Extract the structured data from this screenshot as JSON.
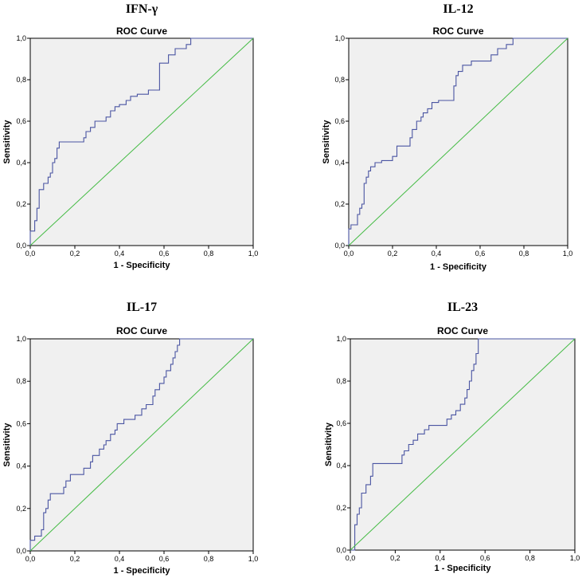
{
  "chart_data": [
    {
      "type": "line",
      "panel_title": "IFN-γ",
      "title": "ROC Curve",
      "xlabel": "1 - Specificity",
      "ylabel": "Sensitivity",
      "xlim": [
        0,
        1
      ],
      "ylim": [
        0,
        1
      ],
      "ticks": [
        "0,0",
        "0,2",
        "0,4",
        "0,6",
        "0,8",
        "1,0"
      ],
      "series": [
        {
          "name": "ROC",
          "x": [
            0,
            0,
            0.02,
            0.02,
            0.03,
            0.03,
            0.04,
            0.04,
            0.06,
            0.06,
            0.08,
            0.08,
            0.09,
            0.09,
            0.1,
            0.1,
            0.11,
            0.11,
            0.12,
            0.12,
            0.13,
            0.13,
            0.24,
            0.24,
            0.25,
            0.25,
            0.27,
            0.27,
            0.29,
            0.29,
            0.34,
            0.34,
            0.36,
            0.36,
            0.38,
            0.38,
            0.4,
            0.4,
            0.43,
            0.43,
            0.45,
            0.45,
            0.48,
            0.48,
            0.53,
            0.53,
            0.58,
            0.58,
            0.62,
            0.62,
            0.65,
            0.65,
            0.7,
            0.7,
            0.72,
            0.72,
            1.0
          ],
          "y": [
            0,
            0.07,
            0.07,
            0.12,
            0.12,
            0.18,
            0.18,
            0.27,
            0.27,
            0.3,
            0.3,
            0.33,
            0.33,
            0.35,
            0.35,
            0.4,
            0.4,
            0.42,
            0.42,
            0.47,
            0.47,
            0.5,
            0.5,
            0.52,
            0.52,
            0.55,
            0.55,
            0.57,
            0.57,
            0.6,
            0.6,
            0.62,
            0.62,
            0.65,
            0.65,
            0.67,
            0.67,
            0.68,
            0.68,
            0.7,
            0.7,
            0.72,
            0.72,
            0.73,
            0.73,
            0.75,
            0.75,
            0.88,
            0.88,
            0.92,
            0.92,
            0.95,
            0.95,
            0.97,
            0.97,
            1.0,
            1.0
          ]
        },
        {
          "name": "Reference",
          "x": [
            0,
            1
          ],
          "y": [
            0,
            1
          ]
        }
      ]
    },
    {
      "type": "line",
      "panel_title": "IL-12",
      "title": "ROC Curve",
      "xlabel": "1 - Specificity",
      "ylabel": "Sensitivity",
      "xlim": [
        0,
        1
      ],
      "ylim": [
        0,
        1
      ],
      "ticks": [
        "0,0",
        "0,2",
        "0,4",
        "0,6",
        "0,8",
        "1,0"
      ],
      "series": [
        {
          "name": "ROC",
          "x": [
            0,
            0,
            0.01,
            0.01,
            0.04,
            0.04,
            0.05,
            0.05,
            0.06,
            0.06,
            0.07,
            0.07,
            0.08,
            0.08,
            0.09,
            0.09,
            0.1,
            0.1,
            0.12,
            0.12,
            0.15,
            0.15,
            0.2,
            0.2,
            0.22,
            0.22,
            0.28,
            0.28,
            0.29,
            0.29,
            0.31,
            0.31,
            0.33,
            0.33,
            0.34,
            0.34,
            0.36,
            0.36,
            0.38,
            0.38,
            0.41,
            0.41,
            0.48,
            0.48,
            0.49,
            0.49,
            0.5,
            0.5,
            0.52,
            0.52,
            0.56,
            0.56,
            0.65,
            0.65,
            0.68,
            0.68,
            0.72,
            0.72,
            0.75,
            0.75,
            1.0
          ],
          "y": [
            0,
            0.08,
            0.08,
            0.1,
            0.1,
            0.15,
            0.15,
            0.18,
            0.18,
            0.2,
            0.2,
            0.3,
            0.3,
            0.33,
            0.33,
            0.36,
            0.36,
            0.38,
            0.38,
            0.4,
            0.4,
            0.41,
            0.41,
            0.43,
            0.43,
            0.48,
            0.48,
            0.52,
            0.52,
            0.56,
            0.56,
            0.6,
            0.6,
            0.62,
            0.62,
            0.64,
            0.64,
            0.66,
            0.66,
            0.69,
            0.69,
            0.7,
            0.7,
            0.77,
            0.77,
            0.82,
            0.82,
            0.84,
            0.84,
            0.87,
            0.87,
            0.89,
            0.89,
            0.92,
            0.92,
            0.95,
            0.95,
            0.97,
            0.97,
            1.0,
            1.0
          ]
        },
        {
          "name": "Reference",
          "x": [
            0,
            1
          ],
          "y": [
            0,
            1
          ]
        }
      ]
    },
    {
      "type": "line",
      "panel_title": "IL-17",
      "title": "ROC Curve",
      "xlabel": "1 - Specificity",
      "ylabel": "Sensitivity",
      "xlim": [
        0,
        1
      ],
      "ylim": [
        0,
        1
      ],
      "ticks": [
        "0,0",
        "0,2",
        "0,4",
        "0,6",
        "0,8",
        "1,0"
      ],
      "series": [
        {
          "name": "ROC",
          "x": [
            0,
            0,
            0.02,
            0.02,
            0.05,
            0.05,
            0.06,
            0.06,
            0.07,
            0.07,
            0.08,
            0.08,
            0.09,
            0.09,
            0.15,
            0.15,
            0.16,
            0.16,
            0.18,
            0.18,
            0.24,
            0.24,
            0.27,
            0.27,
            0.28,
            0.28,
            0.31,
            0.31,
            0.33,
            0.33,
            0.34,
            0.34,
            0.36,
            0.36,
            0.38,
            0.38,
            0.39,
            0.39,
            0.42,
            0.42,
            0.47,
            0.47,
            0.5,
            0.5,
            0.52,
            0.52,
            0.55,
            0.55,
            0.56,
            0.56,
            0.58,
            0.58,
            0.6,
            0.6,
            0.61,
            0.61,
            0.63,
            0.63,
            0.64,
            0.64,
            0.65,
            0.65,
            0.66,
            0.66,
            0.67,
            0.67,
            1.0
          ],
          "y": [
            0,
            0.05,
            0.05,
            0.07,
            0.07,
            0.1,
            0.1,
            0.18,
            0.18,
            0.2,
            0.2,
            0.24,
            0.24,
            0.27,
            0.27,
            0.3,
            0.3,
            0.33,
            0.33,
            0.36,
            0.36,
            0.39,
            0.39,
            0.42,
            0.42,
            0.45,
            0.45,
            0.48,
            0.48,
            0.5,
            0.5,
            0.52,
            0.52,
            0.55,
            0.55,
            0.57,
            0.57,
            0.6,
            0.6,
            0.62,
            0.62,
            0.64,
            0.64,
            0.67,
            0.67,
            0.69,
            0.69,
            0.73,
            0.73,
            0.76,
            0.76,
            0.79,
            0.79,
            0.82,
            0.82,
            0.85,
            0.85,
            0.88,
            0.88,
            0.91,
            0.91,
            0.94,
            0.94,
            0.97,
            0.97,
            1.0,
            1.0
          ]
        },
        {
          "name": "Reference",
          "x": [
            0,
            1
          ],
          "y": [
            0,
            1
          ]
        }
      ]
    },
    {
      "type": "line",
      "panel_title": "IL-23",
      "title": "ROC Curve",
      "xlabel": "1 - Specificity",
      "ylabel": "Sensitivity",
      "xlim": [
        0,
        1
      ],
      "ylim": [
        0,
        1
      ],
      "ticks": [
        "0,0",
        "0,2",
        "0,4",
        "0,6",
        "0,8",
        "1,0"
      ],
      "series": [
        {
          "name": "ROC",
          "x": [
            0,
            0.02,
            0.02,
            0.03,
            0.03,
            0.04,
            0.04,
            0.05,
            0.05,
            0.07,
            0.07,
            0.09,
            0.09,
            0.1,
            0.1,
            0.23,
            0.23,
            0.24,
            0.24,
            0.26,
            0.26,
            0.28,
            0.28,
            0.3,
            0.3,
            0.33,
            0.33,
            0.35,
            0.35,
            0.43,
            0.43,
            0.45,
            0.45,
            0.47,
            0.47,
            0.49,
            0.49,
            0.51,
            0.51,
            0.52,
            0.52,
            0.53,
            0.53,
            0.54,
            0.54,
            0.55,
            0.55,
            0.56,
            0.56,
            0.57,
            0.57,
            1.0
          ],
          "y": [
            0,
            0,
            0.12,
            0.12,
            0.17,
            0.17,
            0.2,
            0.2,
            0.27,
            0.27,
            0.31,
            0.31,
            0.35,
            0.35,
            0.41,
            0.41,
            0.45,
            0.45,
            0.47,
            0.47,
            0.5,
            0.5,
            0.52,
            0.52,
            0.55,
            0.55,
            0.57,
            0.57,
            0.59,
            0.59,
            0.62,
            0.62,
            0.64,
            0.64,
            0.66,
            0.66,
            0.69,
            0.69,
            0.72,
            0.72,
            0.76,
            0.76,
            0.8,
            0.8,
            0.85,
            0.85,
            0.88,
            0.88,
            0.93,
            0.93,
            1.0,
            1.0
          ]
        },
        {
          "name": "Reference",
          "x": [
            0,
            1
          ],
          "y": [
            0,
            1
          ]
        }
      ]
    }
  ]
}
